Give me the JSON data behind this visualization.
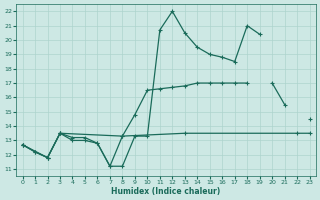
{
  "xlabel": "Humidex (Indice chaleur)",
  "background_color": "#cde8e4",
  "grid_color": "#aed4ce",
  "line_color": "#1a6b5a",
  "xlim": [
    -0.5,
    23.5
  ],
  "ylim": [
    10.5,
    22.5
  ],
  "xticks": [
    0,
    1,
    2,
    3,
    4,
    5,
    6,
    7,
    8,
    9,
    10,
    11,
    12,
    13,
    14,
    15,
    16,
    17,
    18,
    19,
    20,
    21,
    22,
    23
  ],
  "yticks": [
    11,
    12,
    13,
    14,
    15,
    16,
    17,
    18,
    19,
    20,
    21,
    22
  ],
  "line1_x": [
    0,
    1,
    2,
    3,
    4,
    5,
    6,
    7,
    8,
    9,
    10,
    11,
    12,
    13,
    14,
    15,
    16,
    17,
    18,
    19
  ],
  "line1_y": [
    12.7,
    12.2,
    11.8,
    13.5,
    13.0,
    13.0,
    12.8,
    11.2,
    11.2,
    13.3,
    13.3,
    20.7,
    22.0,
    20.5,
    19.5,
    19.0,
    18.8,
    18.5,
    21.0,
    20.4
  ],
  "line2_x": [
    0,
    1,
    2,
    3,
    4,
    5,
    6,
    7,
    8,
    9,
    10,
    11,
    12,
    13,
    14,
    15,
    16,
    17,
    18,
    19,
    20,
    21,
    22,
    23
  ],
  "line2_y": [
    12.7,
    12.2,
    11.8,
    13.5,
    13.2,
    13.2,
    12.8,
    11.2,
    13.3,
    14.8,
    16.5,
    16.6,
    16.7,
    16.8,
    17.0,
    17.0,
    17.0,
    17.0,
    17.0,
    null,
    17.0,
    15.5,
    null,
    14.5
  ],
  "line3_x": [
    0,
    2,
    3,
    8,
    13,
    22,
    23
  ],
  "line3_y": [
    12.7,
    11.8,
    13.5,
    13.3,
    13.5,
    13.5,
    13.5
  ]
}
